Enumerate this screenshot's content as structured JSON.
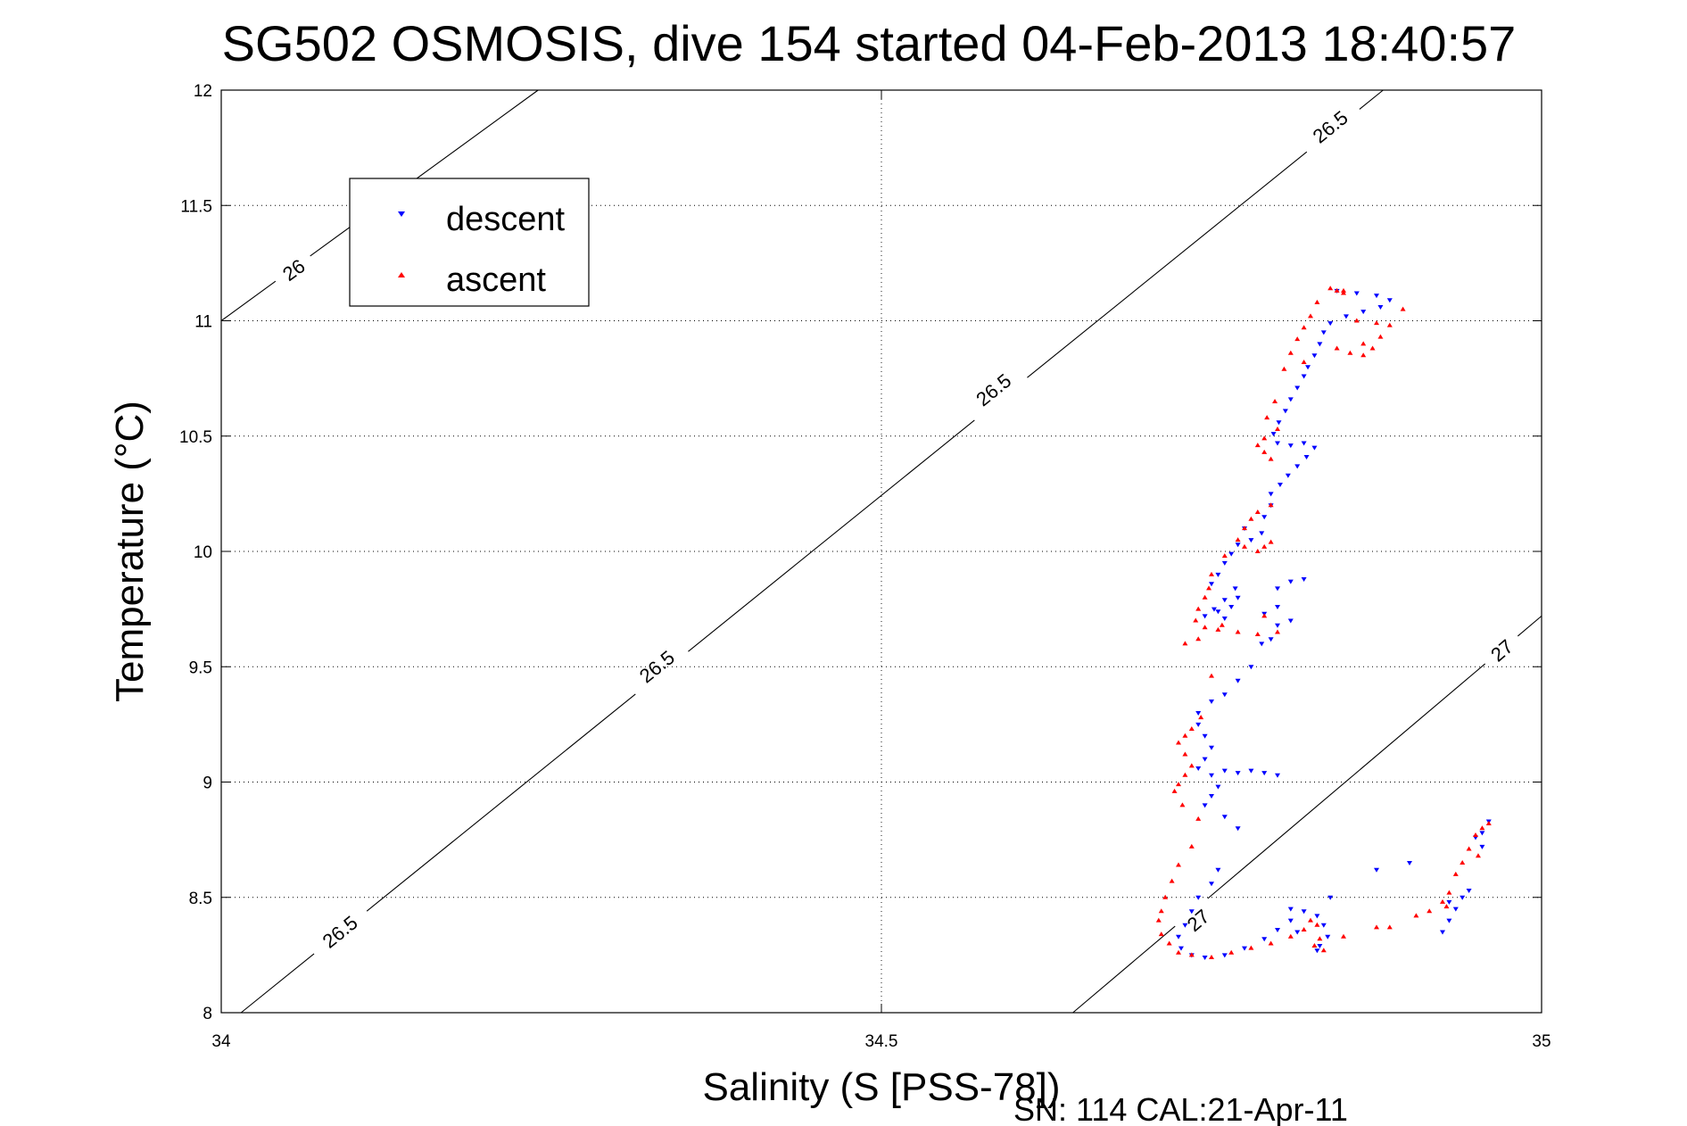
{
  "chart_data": {
    "type": "scatter",
    "title": "SG502 OSMOSIS, dive 154 started 04-Feb-2013 18:40:57",
    "xlabel": "Salinity (S [PSS-78])",
    "ylabel": "Temperature (°C)",
    "footer": "SN: 114  CAL:21-Apr-11",
    "xlim": [
      34,
      35
    ],
    "ylim": [
      8,
      12
    ],
    "x_ticks": [
      34,
      34.5,
      35
    ],
    "x_tick_labels": [
      "34",
      "34.5",
      "35"
    ],
    "y_ticks": [
      8,
      8.5,
      9,
      9.5,
      10,
      10.5,
      11,
      11.5,
      12
    ],
    "y_tick_labels": [
      "8",
      "8.5",
      "9",
      "9.5",
      "10",
      "10.5",
      "11",
      "11.5",
      "12"
    ],
    "grid": true,
    "legend_position": "top-left",
    "legend": [
      "descent",
      "ascent"
    ],
    "colors": {
      "descent": "#0000ff",
      "ascent": "#ff0000"
    },
    "contours": [
      {
        "label": "26",
        "points": [
          [
            34,
            11.0
          ],
          [
            34.24,
            12.0
          ]
        ],
        "labels_at": [
          {
            "x": 34.055,
            "y": 11.22
          }
        ]
      },
      {
        "label": "26.5",
        "points": [
          [
            34.015,
            8.0
          ],
          [
            34.88,
            12.0
          ]
        ],
        "labels_at": [
          {
            "x": 34.09,
            "y": 8.35
          },
          {
            "x": 34.33,
            "y": 9.5
          },
          {
            "x": 34.585,
            "y": 10.7
          },
          {
            "x": 34.84,
            "y": 11.84
          }
        ]
      },
      {
        "label": "27",
        "points": [
          [
            34.645,
            8.0
          ],
          [
            35,
            9.72
          ]
        ],
        "labels_at": [
          {
            "x": 34.74,
            "y": 8.4
          },
          {
            "x": 34.97,
            "y": 9.57
          }
        ]
      }
    ],
    "series": [
      {
        "name": "descent",
        "marker": "triangle-down",
        "points": [
          [
            34.845,
            11.13
          ],
          [
            34.86,
            11.12
          ],
          [
            34.875,
            11.11
          ],
          [
            34.885,
            11.09
          ],
          [
            34.878,
            11.06
          ],
          [
            34.865,
            11.04
          ],
          [
            34.852,
            11.02
          ],
          [
            34.84,
            10.99
          ],
          [
            34.835,
            10.95
          ],
          [
            34.832,
            10.9
          ],
          [
            34.828,
            10.85
          ],
          [
            34.823,
            10.8
          ],
          [
            34.82,
            10.76
          ],
          [
            34.815,
            10.71
          ],
          [
            34.81,
            10.66
          ],
          [
            34.806,
            10.61
          ],
          [
            34.801,
            10.56
          ],
          [
            34.797,
            10.51
          ],
          [
            34.8,
            10.47
          ],
          [
            34.81,
            10.46
          ],
          [
            34.82,
            10.47
          ],
          [
            34.828,
            10.45
          ],
          [
            34.822,
            10.41
          ],
          [
            34.815,
            10.37
          ],
          [
            34.808,
            10.33
          ],
          [
            34.802,
            10.29
          ],
          [
            34.795,
            10.25
          ],
          [
            34.795,
            10.2
          ],
          [
            34.79,
            10.15
          ],
          [
            34.788,
            10.08
          ],
          [
            34.78,
            10.05
          ],
          [
            34.775,
            10.1
          ],
          [
            34.77,
            10.03
          ],
          [
            34.765,
            9.99
          ],
          [
            34.76,
            9.95
          ],
          [
            34.755,
            9.9
          ],
          [
            34.75,
            9.86
          ],
          [
            34.768,
            9.84
          ],
          [
            34.77,
            9.8
          ],
          [
            34.765,
            9.76
          ],
          [
            34.76,
            9.79
          ],
          [
            34.752,
            9.75
          ],
          [
            34.745,
            9.72
          ],
          [
            34.755,
            9.74
          ],
          [
            34.76,
            9.71
          ],
          [
            34.8,
            9.84
          ],
          [
            34.81,
            9.87
          ],
          [
            34.82,
            9.88
          ],
          [
            34.8,
            9.76
          ],
          [
            34.79,
            9.73
          ],
          [
            34.8,
            9.68
          ],
          [
            34.81,
            9.7
          ],
          [
            34.795,
            9.62
          ],
          [
            34.788,
            9.6
          ],
          [
            34.78,
            9.5
          ],
          [
            34.77,
            9.44
          ],
          [
            34.76,
            9.38
          ],
          [
            34.75,
            9.35
          ],
          [
            34.74,
            9.3
          ],
          [
            34.74,
            9.25
          ],
          [
            34.745,
            9.2
          ],
          [
            34.75,
            9.15
          ],
          [
            34.745,
            9.1
          ],
          [
            34.74,
            9.06
          ],
          [
            34.75,
            9.03
          ],
          [
            34.76,
            9.05
          ],
          [
            34.77,
            9.04
          ],
          [
            34.78,
            9.05
          ],
          [
            34.79,
            9.04
          ],
          [
            34.8,
            9.03
          ],
          [
            34.755,
            8.98
          ],
          [
            34.75,
            8.94
          ],
          [
            34.745,
            8.9
          ],
          [
            34.76,
            8.85
          ],
          [
            34.77,
            8.8
          ],
          [
            34.755,
            8.62
          ],
          [
            34.75,
            8.56
          ],
          [
            34.74,
            8.5
          ],
          [
            34.735,
            8.44
          ],
          [
            34.73,
            8.38
          ],
          [
            34.725,
            8.33
          ],
          [
            34.727,
            8.28
          ],
          [
            34.735,
            8.25
          ],
          [
            34.745,
            8.24
          ],
          [
            34.76,
            8.25
          ],
          [
            34.775,
            8.28
          ],
          [
            34.79,
            8.32
          ],
          [
            34.8,
            8.36
          ],
          [
            34.81,
            8.4
          ],
          [
            34.82,
            8.44
          ],
          [
            34.83,
            8.42
          ],
          [
            34.835,
            8.38
          ],
          [
            34.838,
            8.33
          ],
          [
            34.832,
            8.29
          ],
          [
            34.83,
            8.27
          ],
          [
            34.925,
            8.35
          ],
          [
            34.93,
            8.4
          ],
          [
            34.935,
            8.45
          ],
          [
            34.94,
            8.5
          ],
          [
            34.945,
            8.53
          ],
          [
            34.93,
            8.48
          ],
          [
            34.955,
            8.78
          ],
          [
            34.96,
            8.83
          ],
          [
            34.9,
            8.65
          ],
          [
            34.875,
            8.62
          ],
          [
            34.84,
            8.5
          ],
          [
            34.815,
            8.35
          ],
          [
            34.81,
            8.45
          ],
          [
            34.95,
            8.76
          ],
          [
            34.955,
            8.72
          ]
        ]
      },
      {
        "name": "ascent",
        "marker": "triangle-up",
        "points": [
          [
            34.84,
            11.14
          ],
          [
            34.845,
            11.13
          ],
          [
            34.85,
            11.13
          ],
          [
            34.85,
            11.12
          ],
          [
            34.83,
            11.08
          ],
          [
            34.825,
            11.02
          ],
          [
            34.82,
            10.97
          ],
          [
            34.815,
            10.92
          ],
          [
            34.81,
            10.86
          ],
          [
            34.82,
            10.82
          ],
          [
            34.845,
            10.88
          ],
          [
            34.855,
            10.86
          ],
          [
            34.865,
            10.85
          ],
          [
            34.872,
            10.88
          ],
          [
            34.878,
            10.93
          ],
          [
            34.885,
            10.98
          ],
          [
            34.875,
            10.99
          ],
          [
            34.895,
            11.05
          ],
          [
            34.865,
            10.9
          ],
          [
            34.86,
            11.0
          ],
          [
            34.805,
            10.79
          ],
          [
            34.798,
            10.65
          ],
          [
            34.792,
            10.58
          ],
          [
            34.8,
            10.53
          ],
          [
            34.79,
            10.49
          ],
          [
            34.785,
            10.46
          ],
          [
            34.79,
            10.43
          ],
          [
            34.795,
            10.4
          ],
          [
            34.795,
            10.2
          ],
          [
            34.785,
            10.17
          ],
          [
            34.78,
            10.14
          ],
          [
            34.775,
            10.1
          ],
          [
            34.77,
            10.05
          ],
          [
            34.775,
            10.02
          ],
          [
            34.785,
            10.0
          ],
          [
            34.79,
            10.02
          ],
          [
            34.795,
            10.04
          ],
          [
            34.76,
            9.98
          ],
          [
            34.75,
            9.9
          ],
          [
            34.748,
            9.84
          ],
          [
            34.745,
            9.8
          ],
          [
            34.74,
            9.75
          ],
          [
            34.738,
            9.7
          ],
          [
            34.745,
            9.67
          ],
          [
            34.755,
            9.66
          ],
          [
            34.77,
            9.65
          ],
          [
            34.785,
            9.64
          ],
          [
            34.8,
            9.65
          ],
          [
            34.73,
            9.6
          ],
          [
            34.74,
            9.62
          ],
          [
            34.758,
            9.68
          ],
          [
            34.79,
            9.72
          ],
          [
            34.75,
            9.46
          ],
          [
            34.742,
            9.28
          ],
          [
            34.735,
            9.23
          ],
          [
            34.73,
            9.2
          ],
          [
            34.725,
            9.17
          ],
          [
            34.73,
            9.12
          ],
          [
            34.735,
            9.07
          ],
          [
            34.73,
            9.03
          ],
          [
            34.725,
            8.99
          ],
          [
            34.722,
            8.96
          ],
          [
            34.728,
            8.9
          ],
          [
            34.74,
            8.84
          ],
          [
            34.735,
            8.72
          ],
          [
            34.725,
            8.64
          ],
          [
            34.72,
            8.57
          ],
          [
            34.715,
            8.5
          ],
          [
            34.712,
            8.44
          ],
          [
            34.71,
            8.4
          ],
          [
            34.712,
            8.34
          ],
          [
            34.718,
            8.3
          ],
          [
            34.725,
            8.26
          ],
          [
            34.735,
            8.25
          ],
          [
            34.75,
            8.24
          ],
          [
            34.765,
            8.26
          ],
          [
            34.78,
            8.28
          ],
          [
            34.795,
            8.3
          ],
          [
            34.81,
            8.33
          ],
          [
            34.82,
            8.36
          ],
          [
            34.825,
            8.4
          ],
          [
            34.83,
            8.38
          ],
          [
            34.832,
            8.32
          ],
          [
            34.828,
            8.29
          ],
          [
            34.835,
            8.27
          ],
          [
            34.85,
            8.33
          ],
          [
            34.875,
            8.37
          ],
          [
            34.885,
            8.37
          ],
          [
            34.905,
            8.42
          ],
          [
            34.915,
            8.44
          ],
          [
            34.925,
            8.48
          ],
          [
            34.93,
            8.52
          ],
          [
            34.935,
            8.6
          ],
          [
            34.94,
            8.65
          ],
          [
            34.945,
            8.71
          ],
          [
            34.95,
            8.77
          ],
          [
            34.955,
            8.8
          ],
          [
            34.96,
            8.82
          ],
          [
            34.928,
            8.46
          ],
          [
            34.952,
            8.68
          ]
        ]
      }
    ]
  }
}
